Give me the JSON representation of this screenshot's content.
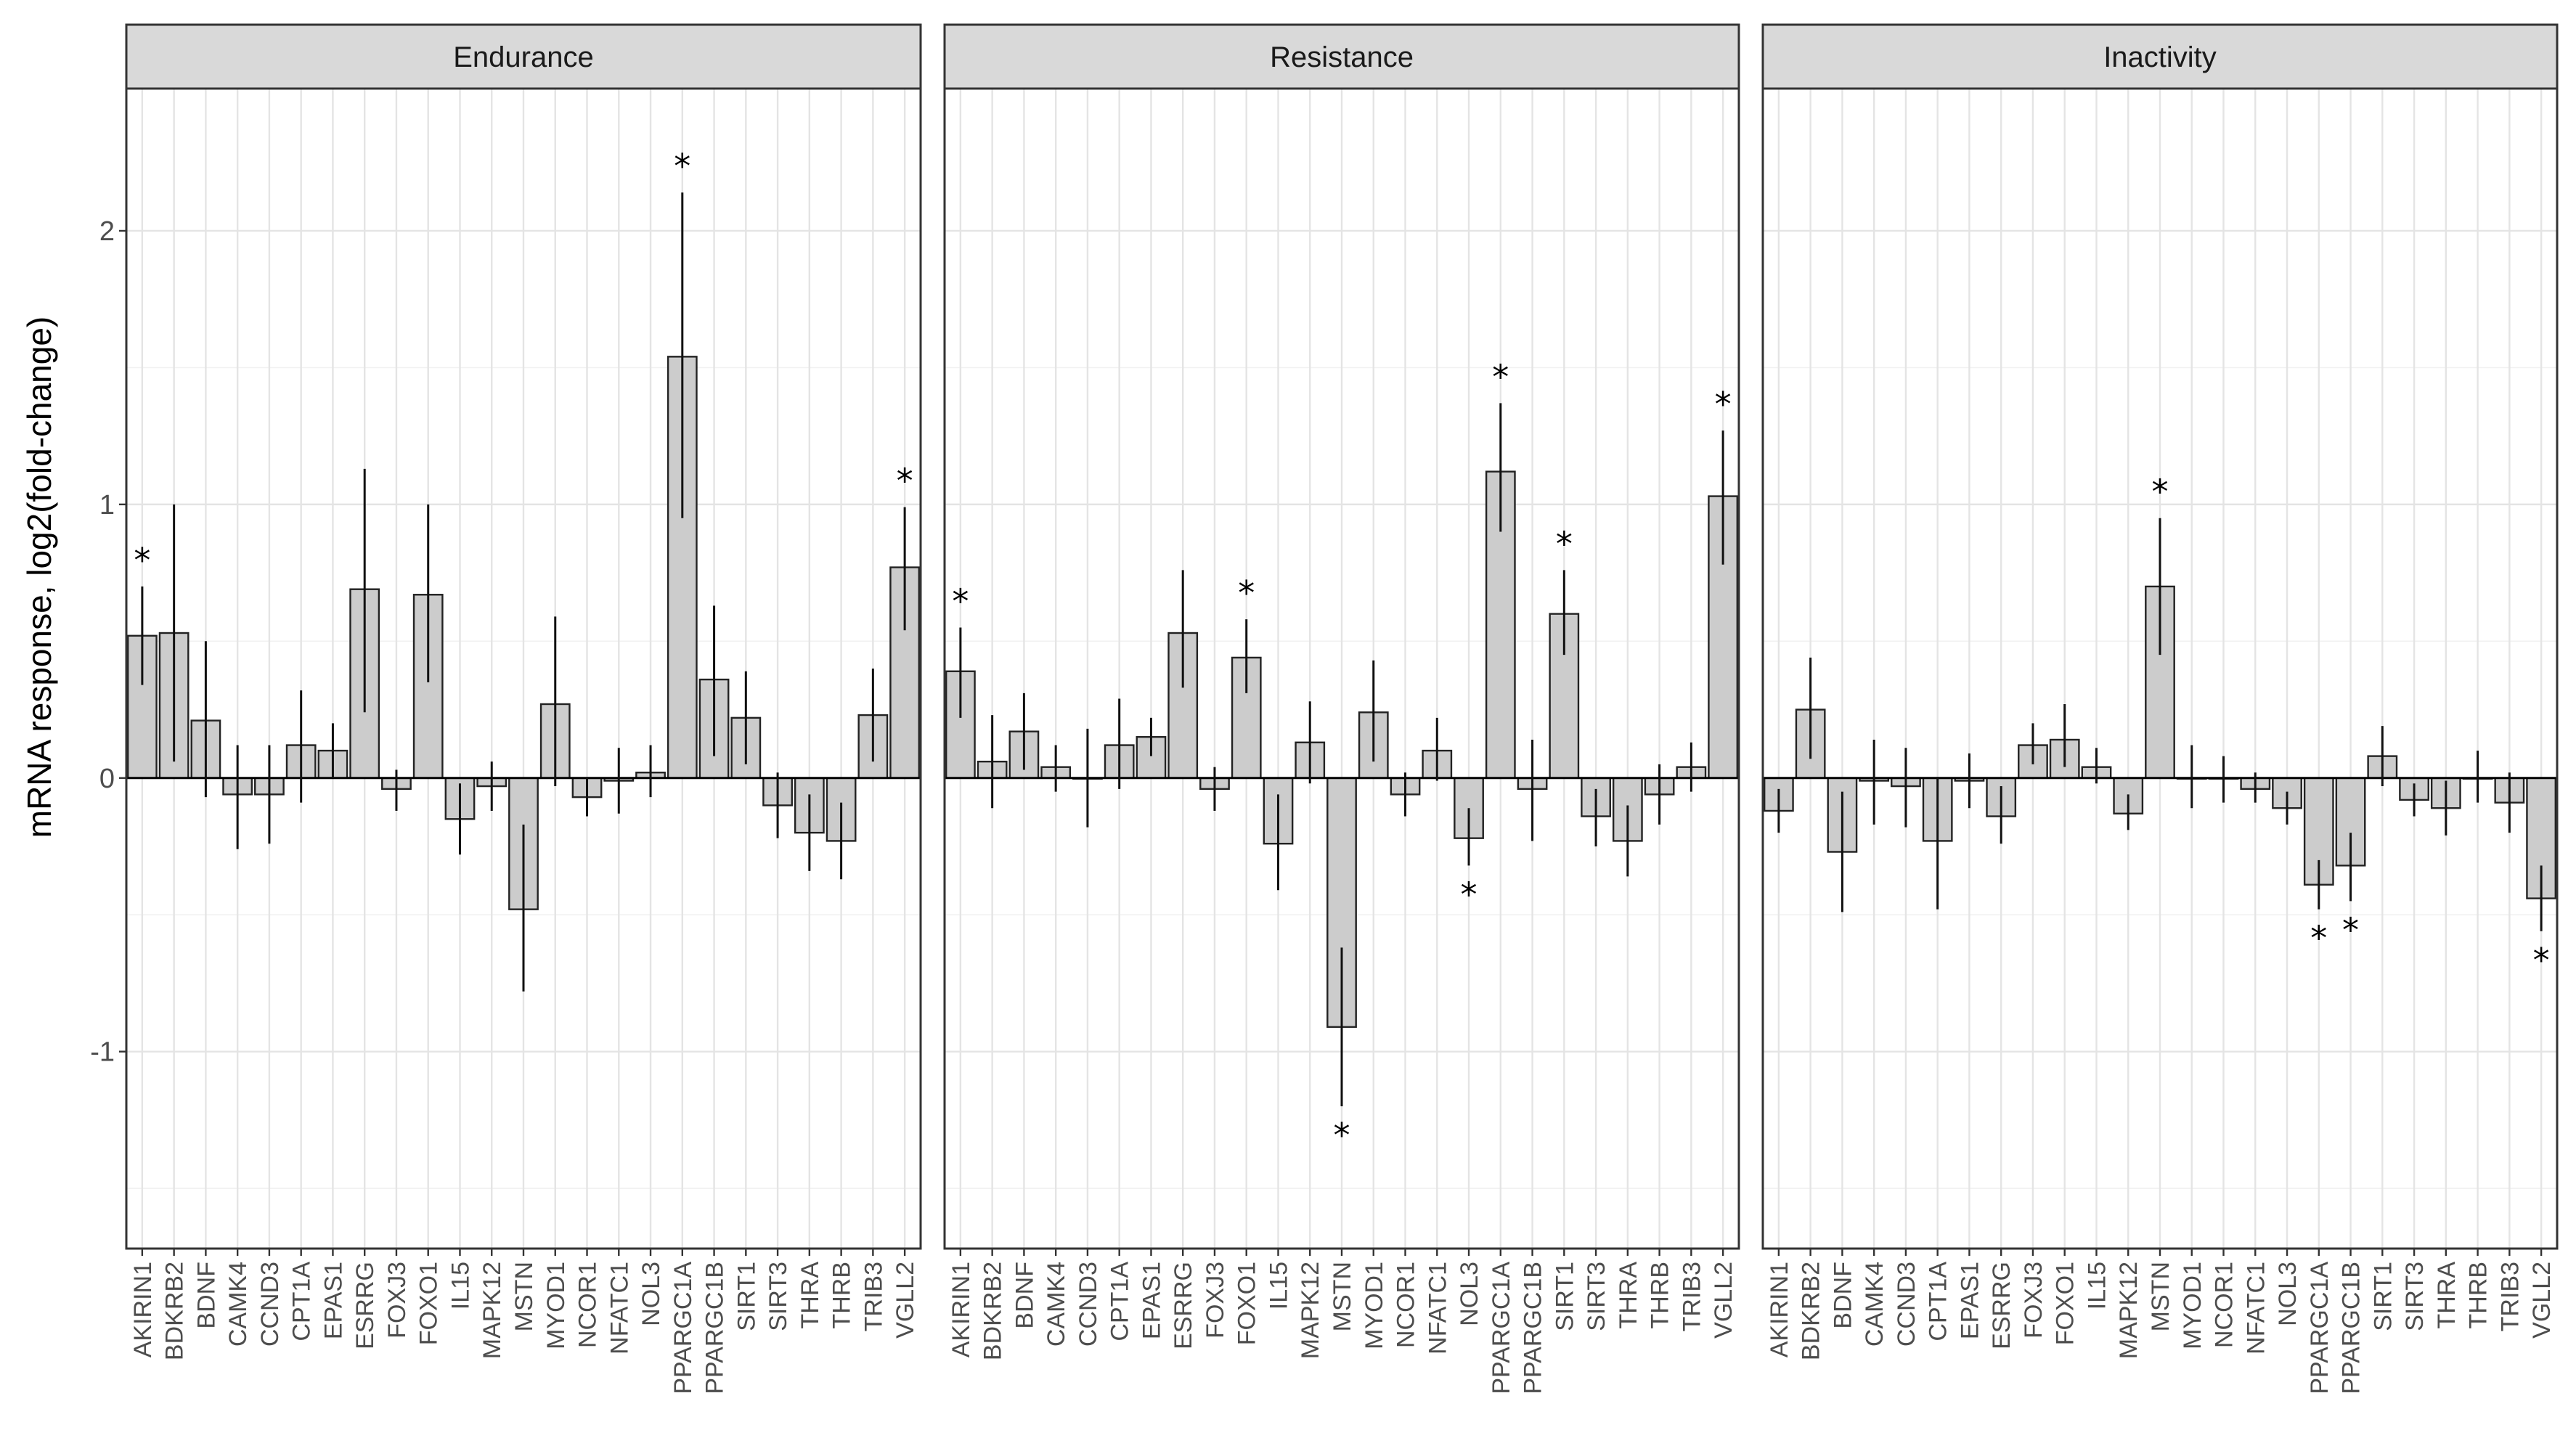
{
  "chart_data": {
    "type": "bar",
    "ylabel": "mRNA response, log2(fold-change)",
    "xlabel": "",
    "ylim": [
      -1.72,
      2.52
    ],
    "yticks": [
      -1,
      0,
      1,
      2
    ],
    "grid": true,
    "categories": [
      "AKIRIN1",
      "BDKRB2",
      "BDNF",
      "CAMK4",
      "CCND3",
      "CPT1A",
      "EPAS1",
      "ESRRG",
      "FOXJ3",
      "FOXO1",
      "IL15",
      "MAPK12",
      "MSTN",
      "MYOD1",
      "NCOR1",
      "NFATC1",
      "NOL3",
      "PPARGC1A",
      "PPARGC1B",
      "SIRT1",
      "SIRT3",
      "THRA",
      "THRB",
      "TRIB3",
      "VGLL2"
    ],
    "panels": [
      {
        "title": "Endurance",
        "values": [
          0.52,
          0.53,
          0.21,
          -0.06,
          -0.06,
          0.12,
          0.1,
          0.69,
          -0.04,
          0.67,
          -0.15,
          -0.03,
          -0.48,
          0.27,
          -0.07,
          -0.01,
          0.02,
          1.54,
          0.36,
          0.22,
          -0.1,
          -0.2,
          -0.23,
          0.23,
          0.77
        ],
        "error_low": [
          0.34,
          0.06,
          -0.07,
          -0.26,
          -0.24,
          -0.09,
          0.0,
          0.24,
          -0.12,
          0.35,
          -0.28,
          -0.12,
          -0.78,
          -0.03,
          -0.14,
          -0.13,
          -0.07,
          0.95,
          0.08,
          0.05,
          -0.22,
          -0.34,
          -0.37,
          0.06,
          0.54
        ],
        "error_high": [
          0.7,
          1.0,
          0.5,
          0.12,
          0.12,
          0.32,
          0.2,
          1.13,
          0.03,
          1.0,
          -0.02,
          0.06,
          -0.17,
          0.59,
          0.0,
          0.11,
          0.12,
          2.14,
          0.63,
          0.39,
          0.02,
          -0.06,
          -0.09,
          0.4,
          0.99
        ],
        "significant": [
          "AKIRIN1",
          "PPARGC1A",
          "VGLL2"
        ]
      },
      {
        "title": "Resistance",
        "values": [
          0.39,
          0.06,
          0.17,
          0.04,
          0.0,
          0.12,
          0.15,
          0.53,
          -0.04,
          0.44,
          -0.24,
          0.13,
          -0.91,
          0.24,
          -0.06,
          0.1,
          -0.22,
          1.12,
          -0.04,
          0.6,
          -0.14,
          -0.23,
          -0.06,
          0.04,
          1.03
        ],
        "error_low": [
          0.22,
          -0.11,
          0.03,
          -0.05,
          -0.18,
          -0.04,
          0.08,
          0.33,
          -0.12,
          0.31,
          -0.41,
          -0.02,
          -1.2,
          0.06,
          -0.14,
          -0.01,
          -0.32,
          0.9,
          -0.23,
          0.45,
          -0.25,
          -0.36,
          -0.17,
          -0.05,
          0.78
        ],
        "error_high": [
          0.55,
          0.23,
          0.31,
          0.12,
          0.18,
          0.29,
          0.22,
          0.76,
          0.04,
          0.58,
          -0.06,
          0.28,
          -0.62,
          0.43,
          0.02,
          0.22,
          -0.11,
          1.37,
          0.14,
          0.76,
          -0.04,
          -0.1,
          0.05,
          0.13,
          1.27
        ],
        "significant": [
          "AKIRIN1",
          "FOXO1",
          "MSTN",
          "NOL3",
          "PPARGC1A",
          "SIRT1",
          "VGLL2"
        ]
      },
      {
        "title": "Inactivity",
        "values": [
          -0.12,
          0.25,
          -0.27,
          -0.01,
          -0.03,
          -0.23,
          -0.01,
          -0.14,
          0.12,
          0.14,
          0.04,
          -0.13,
          0.7,
          0.0,
          0.0,
          -0.04,
          -0.11,
          -0.39,
          -0.32,
          0.08,
          -0.08,
          -0.11,
          0.0,
          -0.09,
          -0.44
        ],
        "error_low": [
          -0.2,
          0.07,
          -0.49,
          -0.17,
          -0.18,
          -0.48,
          -0.11,
          -0.24,
          0.05,
          0.04,
          -0.02,
          -0.19,
          0.45,
          -0.11,
          -0.09,
          -0.09,
          -0.17,
          -0.48,
          -0.45,
          -0.03,
          -0.14,
          -0.21,
          -0.09,
          -0.2,
          -0.56
        ],
        "error_high": [
          -0.04,
          0.44,
          -0.05,
          0.14,
          0.11,
          0.0,
          0.09,
          -0.03,
          0.2,
          0.27,
          0.11,
          -0.06,
          0.95,
          0.12,
          0.08,
          0.02,
          -0.05,
          -0.3,
          -0.2,
          0.19,
          -0.02,
          -0.01,
          0.1,
          0.02,
          -0.32
        ],
        "significant": [
          "MSTN",
          "PPARGC1A",
          "PPARGC1B",
          "VGLL2"
        ]
      }
    ],
    "significance_marker": "*"
  }
}
